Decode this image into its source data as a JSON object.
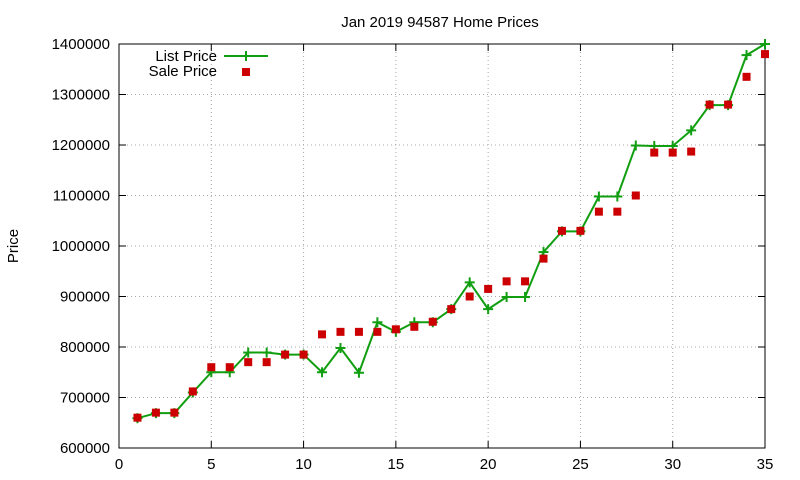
{
  "chart_data": {
    "type": "line",
    "title": "Jan 2019 94587 Home Prices",
    "xlabel": "",
    "ylabel": "Price",
    "xlim": [
      0,
      35
    ],
    "ylim": [
      600000,
      1400000
    ],
    "x_ticks": [
      0,
      5,
      10,
      15,
      20,
      25,
      30,
      35
    ],
    "y_ticks": [
      600000,
      700000,
      800000,
      900000,
      1000000,
      1100000,
      1200000,
      1300000,
      1400000
    ],
    "grid": true,
    "legend_position": "top-left",
    "x": [
      1,
      2,
      3,
      4,
      5,
      6,
      7,
      8,
      9,
      10,
      11,
      12,
      13,
      14,
      15,
      16,
      17,
      18,
      19,
      20,
      21,
      22,
      23,
      24,
      25,
      26,
      27,
      28,
      29,
      30,
      31,
      32,
      33,
      34,
      35
    ],
    "series": [
      {
        "name": "List Price",
        "style": "line-with-plus-markers",
        "color": "#119f11",
        "values": [
          659000,
          669000,
          669000,
          710000,
          750000,
          750000,
          789000,
          789000,
          785000,
          785000,
          750000,
          798000,
          749000,
          849000,
          830000,
          849000,
          849000,
          875000,
          928000,
          875000,
          899000,
          899000,
          988000,
          1029000,
          1029000,
          1098000,
          1098000,
          1199000,
          1198000,
          1198000,
          1229000,
          1279000,
          1279000,
          1378000,
          1400000
        ]
      },
      {
        "name": "Sale Price",
        "style": "square-markers",
        "color": "#cc0000",
        "values": [
          660000,
          670000,
          670000,
          712000,
          760000,
          760000,
          770000,
          770000,
          785000,
          785000,
          825000,
          830000,
          830000,
          830000,
          835000,
          840000,
          850000,
          875000,
          900000,
          915000,
          930000,
          930000,
          975000,
          1030000,
          1030000,
          1068000,
          1068000,
          1100000,
          1185000,
          1185000,
          1187000,
          1280000,
          1280000,
          1335000,
          1380000
        ]
      }
    ]
  }
}
